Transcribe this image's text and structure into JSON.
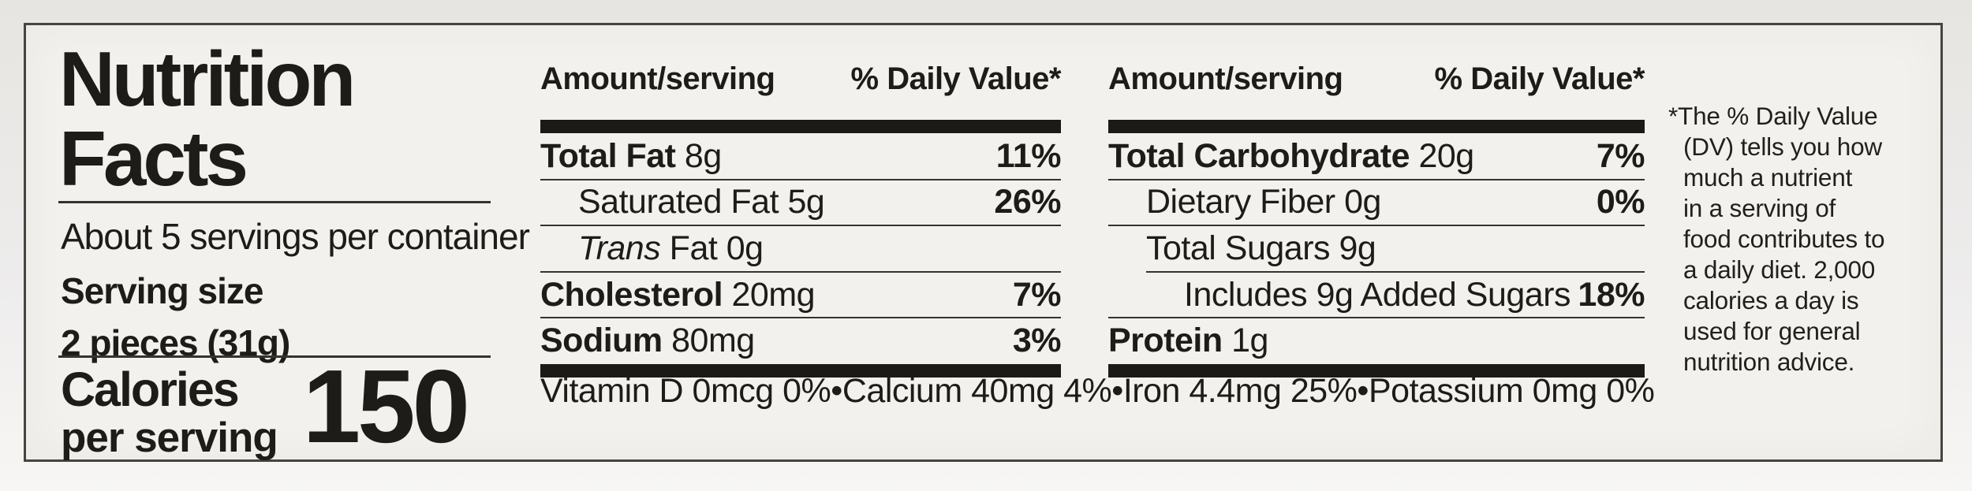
{
  "label": {
    "title_line1": "Nutrition",
    "title_line2": "Facts",
    "servings_per_container": "About 5 servings per container",
    "serving_size_label": "Serving size",
    "serving_size_value": "2 pieces (31g)",
    "calories_label_line1": "Calories",
    "calories_label_line2": "per serving",
    "calories_value": "150"
  },
  "columns": [
    {
      "header_amount": "Amount/serving",
      "header_daily_value": "% Daily Value*",
      "rows": [
        {
          "name": "Total Fat",
          "amount": "8g",
          "daily_value": "11%",
          "bold": true,
          "indent": 0
        },
        {
          "name": "Saturated Fat",
          "amount": "5g",
          "daily_value": "26%",
          "bold": false,
          "indent": 1
        },
        {
          "name": "Trans Fat",
          "name_italic_part": "Trans",
          "name_regular_part": "Fat",
          "amount": "0g",
          "daily_value": "",
          "bold": false,
          "indent": 1
        },
        {
          "name": "Cholesterol",
          "amount": "20mg",
          "daily_value": "7%",
          "bold": true,
          "indent": 0
        },
        {
          "name": "Sodium",
          "amount": "80mg",
          "daily_value": "3%",
          "bold": true,
          "indent": 0
        }
      ]
    },
    {
      "header_amount": "Amount/serving",
      "header_daily_value": "% Daily Value*",
      "rows": [
        {
          "name": "Total Carbohydrate",
          "amount": "20g",
          "daily_value": "7%",
          "bold": true,
          "indent": 0
        },
        {
          "name": "Dietary Fiber",
          "amount": "0g",
          "daily_value": "0%",
          "bold": false,
          "indent": 1
        },
        {
          "name": "Total Sugars",
          "amount": "9g",
          "daily_value": "",
          "bold": false,
          "indent": 1
        },
        {
          "name": "Includes 9g Added Sugars",
          "amount": "",
          "daily_value": "18%",
          "bold": false,
          "indent": 2,
          "rule_indent": 1
        },
        {
          "name": "Protein",
          "amount": "1g",
          "daily_value": "",
          "bold": true,
          "indent": 0
        }
      ]
    }
  ],
  "micronutrients": [
    "Vitamin D 0mcg 0%",
    "Calcium 40mg 4%",
    "Iron 4.4mg 25%",
    "Potassium 0mg 0%"
  ],
  "bullet": "•",
  "footnote_lines": [
    "*The % Daily Value",
    "(DV) tells you how",
    "much a nutrient",
    "in a serving of",
    "food contributes to",
    "a daily diet. 2,000",
    "calories a day is",
    "used for general",
    "nutrition advice."
  ],
  "colors": {
    "page_background": "#eceae6",
    "label_background": "#f2f1ed",
    "text": "#1d1c19",
    "rule": "#35332f",
    "thick_bar": "#1b1a17",
    "border": "#46443f"
  }
}
